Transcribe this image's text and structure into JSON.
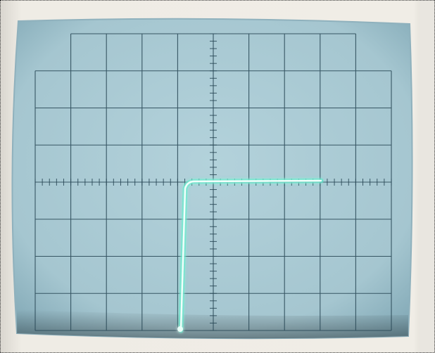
{
  "colors": {
    "bezel": "#ece8df",
    "bezel_shadow": "#c8c4bb",
    "screen": "#a9c9d3",
    "screen_edge": "#7fa6b4",
    "grid": "#2a4a5a",
    "trace": "#dffcf6",
    "trace_glow": "#38e6c4"
  },
  "scene": {
    "subject": "oscilloscope-screen",
    "grid_divisions": {
      "horizontal": 10,
      "vertical": 8
    },
    "trace_shape": "step"
  }
}
